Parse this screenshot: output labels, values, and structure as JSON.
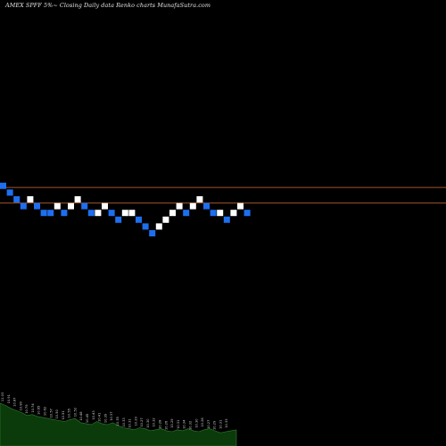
{
  "chart_data": {
    "type": "renko",
    "title": "AMEX  SPFF 5%~  Closing Daily data  Renko  charts MunafaSutra.com",
    "brick_levels": [
      15,
      14,
      13,
      12,
      13,
      12,
      11,
      11,
      12,
      11,
      12,
      13,
      12,
      11,
      11,
      12,
      11,
      10,
      11,
      11,
      10,
      9,
      8,
      9,
      10,
      11,
      12,
      11,
      12,
      13,
      12,
      11,
      11,
      10,
      11,
      12,
      11
    ],
    "brick_colors": [
      "blue",
      "blue",
      "blue",
      "blue",
      "white",
      "blue",
      "blue",
      "blue",
      "white",
      "blue",
      "white",
      "white",
      "blue",
      "blue",
      "white",
      "white",
      "blue",
      "blue",
      "white",
      "white",
      "blue",
      "blue",
      "blue",
      "white",
      "white",
      "white",
      "white",
      "blue",
      "white",
      "white",
      "blue",
      "blue",
      "white",
      "blue",
      "white",
      "white",
      "blue"
    ],
    "reference_lines": [
      14.8,
      12.5
    ],
    "volume": [
      0.42,
      0.4,
      0.37,
      0.35,
      0.33,
      0.3,
      0.31,
      0.29,
      0.28,
      0.27,
      0.26,
      0.25,
      0.24,
      0.26,
      0.27,
      0.23,
      0.22,
      0.21,
      0.24,
      0.22,
      0.21,
      0.23,
      0.2,
      0.18,
      0.17,
      0.16,
      0.18,
      0.17,
      0.15,
      0.16,
      0.17,
      0.15,
      0.14,
      0.16,
      0.15,
      0.17,
      0.15,
      0.14,
      0.16,
      0.17,
      0.15,
      0.13,
      0.14,
      0.15,
      0.16
    ],
    "volume_labels": [
      "11.03",
      "10.91",
      "10.87",
      "10.80",
      "10.79",
      "10.74",
      "10.65",
      "10.62",
      "10.57",
      "10.50",
      "10.51",
      "10.55",
      "10.52",
      "10.48",
      "10.45",
      "10.43",
      "10.41",
      "10.39",
      "10.37",
      "10.35",
      "10.33",
      "10.31",
      "10.29",
      "10.27",
      "10.30",
      "10.32",
      "10.28",
      "10.26",
      "10.29",
      "10.31",
      "10.34",
      "10.32",
      "10.30",
      "10.28",
      "10.27",
      "10.29",
      "10.31",
      "10.33"
    ],
    "colors": {
      "white_brick": "#ffffff",
      "blue_brick": "#1e6ff0",
      "reference_line": "#a0522d",
      "volume_fill": "#0b3a0b",
      "volume_line": "#2e7d2e",
      "label_text": "#d0d0d0",
      "background": "#000000"
    }
  }
}
